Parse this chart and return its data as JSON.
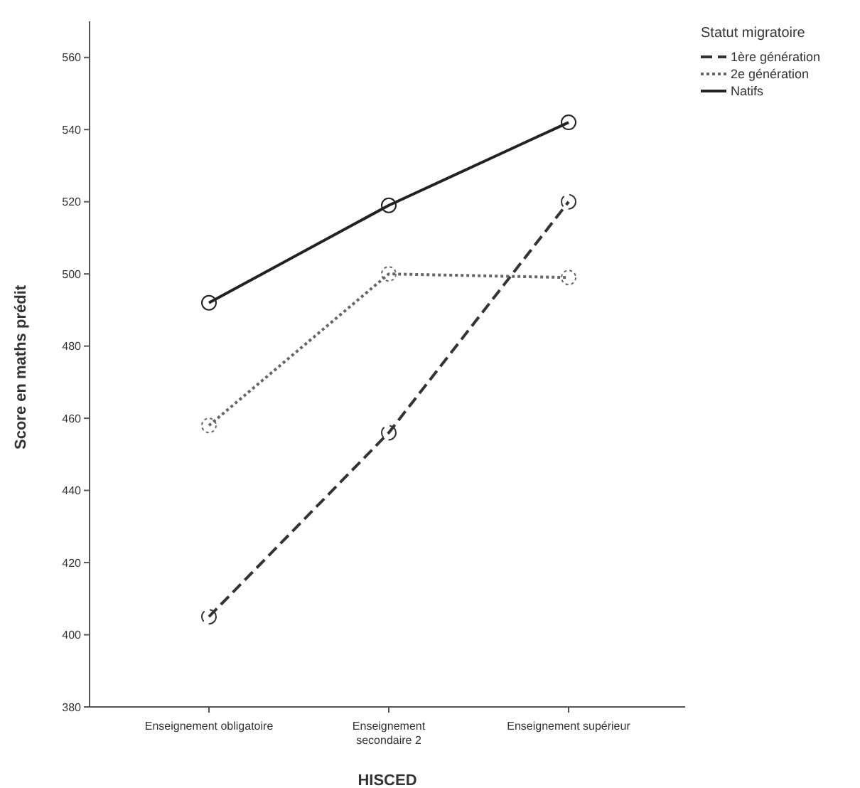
{
  "chart_data": {
    "type": "line",
    "xlabel": "HISCED",
    "ylabel": "Score en maths prédit",
    "legend_title": "Statut migratoire",
    "categories": [
      "Enseignement obligatoire",
      "Enseignement secondaire 2",
      "Enseignement supérieur"
    ],
    "series": [
      {
        "name": "1ère génération",
        "color": "#333333",
        "line_style": "dashed",
        "values": [
          405,
          456,
          520
        ]
      },
      {
        "name": "2e génération",
        "color": "#666666",
        "line_style": "dotted",
        "values": [
          458,
          500,
          499
        ]
      },
      {
        "name": "Natifs",
        "color": "#222222",
        "line_style": "solid",
        "values": [
          492,
          519,
          542
        ]
      }
    ],
    "ylim": [
      380,
      570
    ],
    "yticks": [
      380,
      400,
      420,
      440,
      460,
      480,
      500,
      520,
      540,
      560
    ],
    "grid": false,
    "legend": "top right",
    "marker": "circle"
  }
}
